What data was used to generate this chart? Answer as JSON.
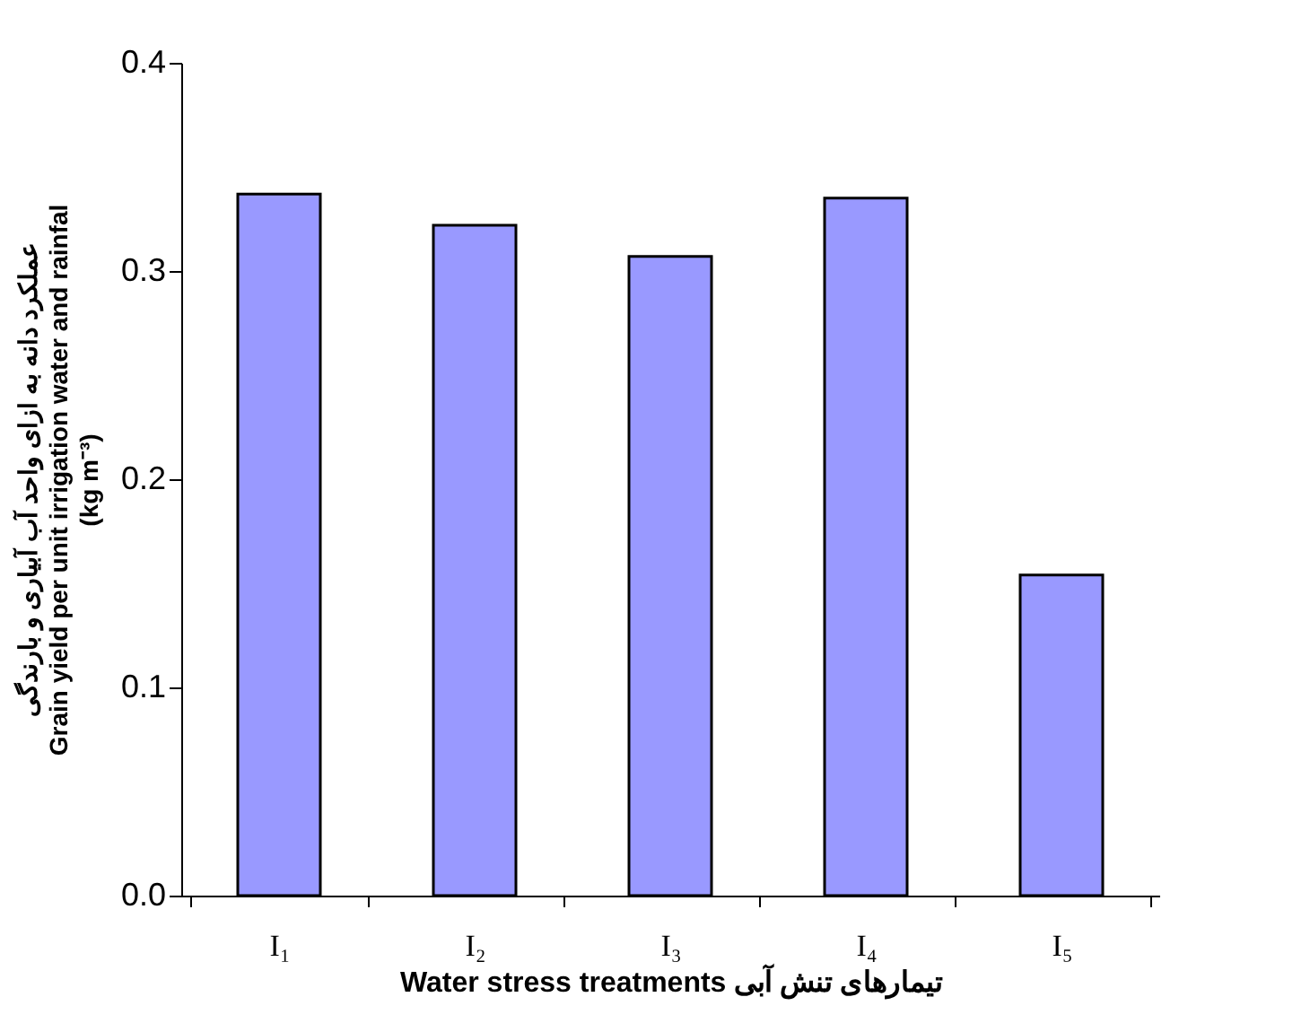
{
  "chart_data": {
    "type": "bar",
    "categories": [
      "I₁",
      "I₂",
      "I₃",
      "I₄",
      "I₅"
    ],
    "values": [
      0.337,
      0.322,
      0.307,
      0.335,
      0.154
    ],
    "color": "#9999ff",
    "ylim": [
      0,
      0.4
    ],
    "yticks": [
      {
        "value": 0,
        "label": "0.0"
      },
      {
        "value": 0.1,
        "label": "0.1"
      },
      {
        "value": 0.2,
        "label": "0.2"
      },
      {
        "value": 0.3,
        "label": "0.3"
      },
      {
        "value": 0.4,
        "label": "0.4"
      }
    ],
    "ylabel": "عملکرد  دانه به ازای واحد آب آبیاری و بارندگی\nGrain yield per unit irrigation water and rainfal\n(kg m⁻³)",
    "xlabel": "Water stress treatments  تیمارهای تنش آبی",
    "grid": false
  }
}
